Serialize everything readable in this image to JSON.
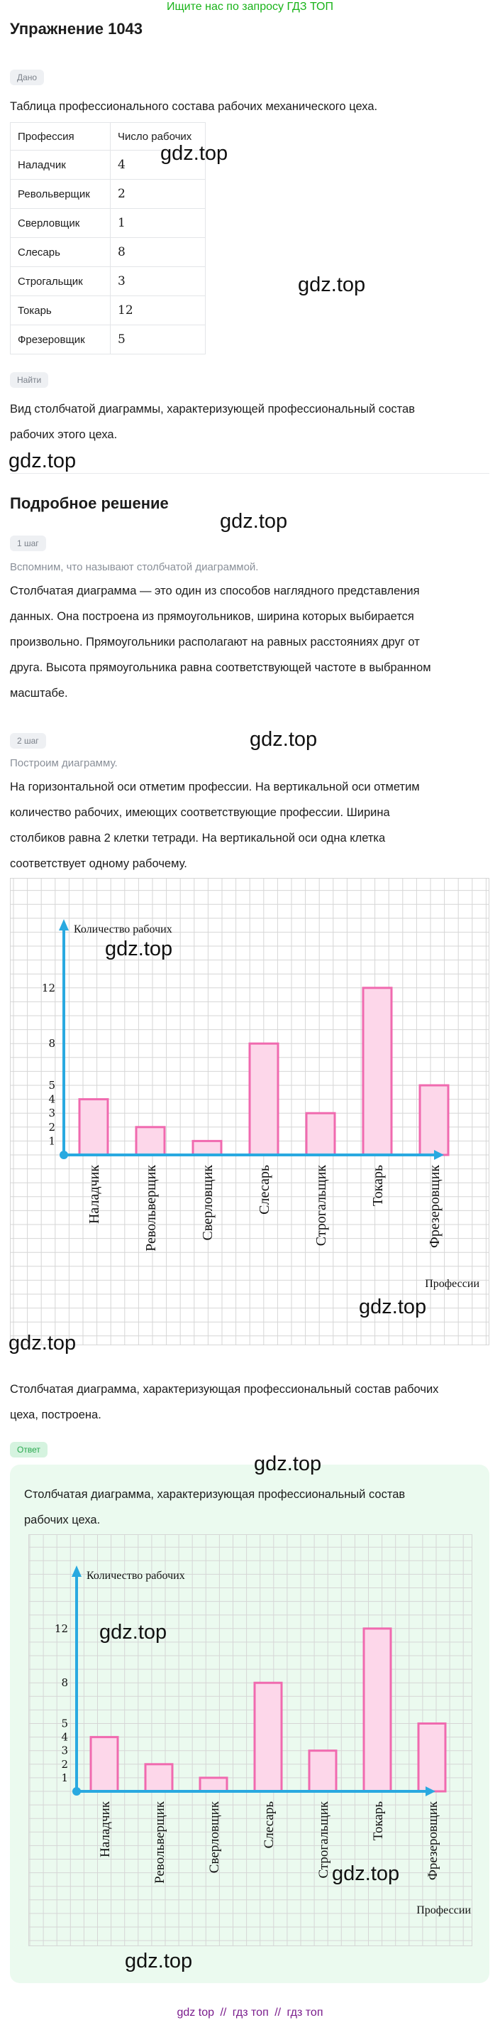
{
  "top_link": "Ищите нас по запросу ГДЗ ТОП",
  "title": "Упражнение 1043",
  "given": {
    "tag": "Дано",
    "text": "Таблица профессионального состава рабочих механического цеха."
  },
  "table": {
    "headers": [
      "Профессия",
      "Число рабочих"
    ],
    "rows": [
      {
        "name": "Наладчик",
        "count": "4"
      },
      {
        "name": "Револьверщик",
        "count": "2"
      },
      {
        "name": "Сверловщик",
        "count": "1"
      },
      {
        "name": "Слесарь",
        "count": "8"
      },
      {
        "name": "Строгальщик",
        "count": "3"
      },
      {
        "name": "Токарь",
        "count": "12"
      },
      {
        "name": "Фрезеровщик",
        "count": "5"
      }
    ]
  },
  "find": {
    "tag": "Найти",
    "text_1": "Вид столбчатой диаграммы, характеризующей профессиональный состав",
    "text_2": "рабочих этого цеха."
  },
  "solution_title": "Подробное решение",
  "step1": {
    "tag": "1 шаг",
    "hint": "Вспомним, что называют столбчатой диаграммой.",
    "lines": [
      "Столбчатая диаграмма — это один из способов наглядного представления",
      "данных. Она построена из прямоугольников, ширина которых выбирается",
      "произвольно. Прямоугольники располагают на равных расстояниях друг от",
      "друга. Высота прямоугольника равна соответствующей частоте в выбранном",
      "масштабе."
    ]
  },
  "step2": {
    "tag": "2 шаг",
    "hint": "Построим диаграмму.",
    "lines": [
      "На горизонтальной оси отметим профессии. На вертикальной оси отметим",
      "количество рабочих, имеющих соответствующие профессии. Ширина",
      "столбиков равна 2 клетки тетради. На вертикальной оси одна клетка",
      "соответствует одному рабочему."
    ]
  },
  "conclusion": [
    "Столбчатая диаграмма, характеризующая профессиональный состав рабочих",
    "цеха, построена."
  ],
  "answer": {
    "tag": "Ответ",
    "lines": [
      "Столбчатая диаграмма, характеризующая профессиональный состав",
      "рабочих цеха."
    ]
  },
  "chart_data": [
    {
      "type": "bar",
      "categories": [
        "Наладчик",
        "Револьверщик",
        "Сверловщик",
        "Слесарь",
        "Строгальщик",
        "Токарь",
        "Фрезеровщик"
      ],
      "values": [
        4,
        2,
        1,
        8,
        3,
        12,
        5
      ],
      "ylabel": "Количество рабочих",
      "xlabel": "Профессии",
      "y_ticks": [
        "1",
        "2",
        "3",
        "4",
        "5",
        "8",
        "12"
      ],
      "ylim": [
        0,
        14
      ],
      "grid": true,
      "colors": {
        "bar_fill": "#fdd7ea",
        "bar_stroke": "#f06aaf",
        "axis": "#29a9e0",
        "grid": "#d6d6d6"
      }
    },
    {
      "type": "bar",
      "categories": [
        "Наладчик",
        "Револьверщик",
        "Сверловщик",
        "Слесарь",
        "Строгальщик",
        "Токарь",
        "Фрезеровщик"
      ],
      "values": [
        4,
        2,
        1,
        8,
        3,
        12,
        5
      ],
      "ylabel": "Количество рабочих",
      "xlabel": "Профессии",
      "y_ticks": [
        "1",
        "2",
        "3",
        "4",
        "5",
        "8",
        "12"
      ],
      "ylim": [
        0,
        14
      ],
      "grid": true,
      "colors": {
        "bar_fill": "#fdd7ea",
        "bar_stroke": "#f06aaf",
        "axis": "#29a9e0",
        "grid": "#d6d6d6"
      }
    }
  ],
  "watermark": "gdz.top",
  "footer": [
    "gdz top",
    "//",
    "гдз топ",
    "//",
    "гдз топ"
  ]
}
